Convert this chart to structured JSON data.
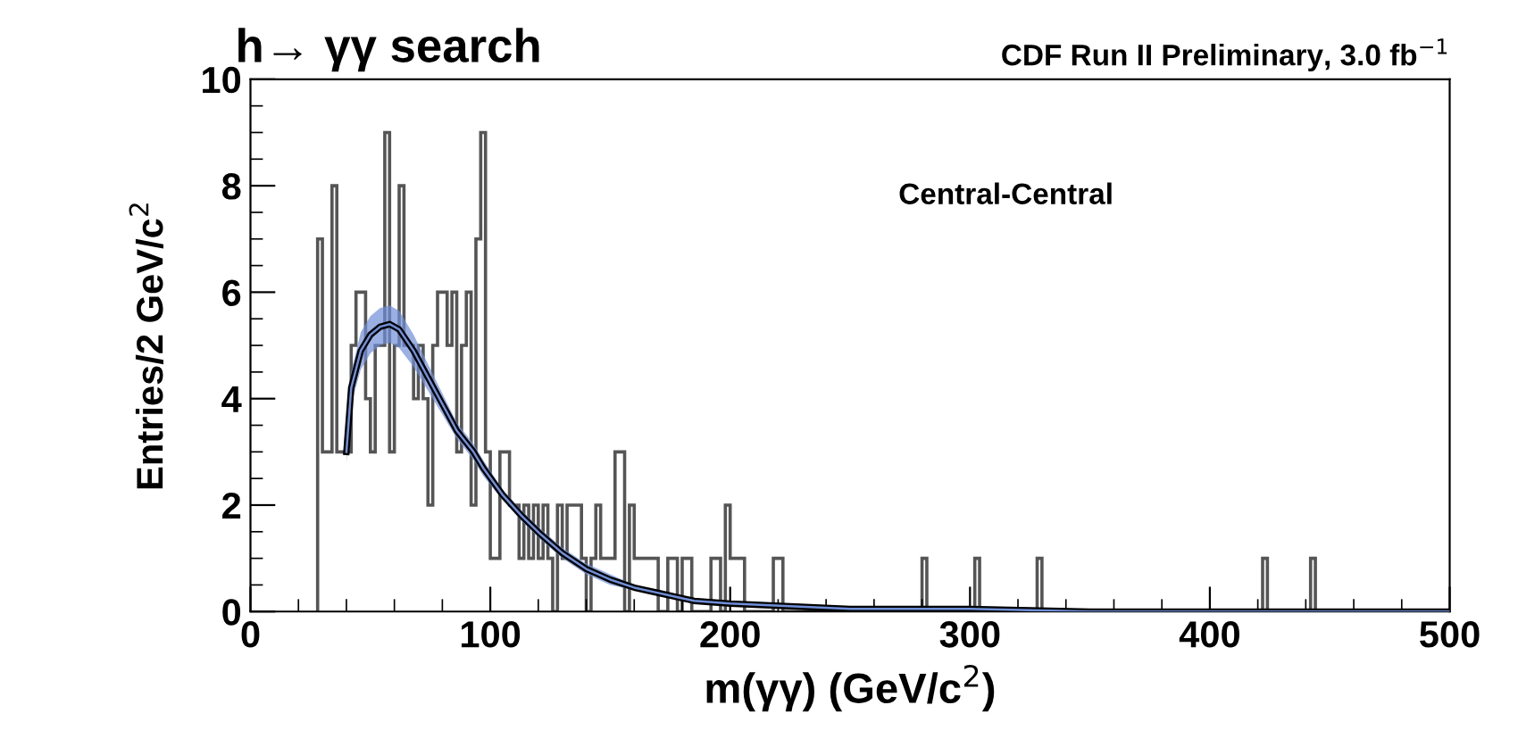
{
  "chart_data": {
    "type": "histogram",
    "title": "h→ γγ search",
    "xlabel": "m(γγ) (GeV/c$^{2}$)",
    "ylabel": "Entries/2 GeV/c$^{2}$",
    "annotations": [
      "CDF Run II Preliminary, 3.0 fb$^{−1}$",
      "Central-Central"
    ],
    "bins": [
      28,
      30,
      32,
      34,
      36,
      38,
      40,
      42,
      44,
      46,
      48,
      50,
      52,
      54,
      56,
      58,
      60,
      62,
      64,
      66,
      68,
      70,
      72,
      74,
      76,
      78,
      80,
      82,
      84,
      86,
      88,
      90,
      92,
      94,
      96,
      98,
      100,
      102,
      104,
      106,
      108,
      110,
      112,
      114,
      116,
      118,
      120,
      122,
      124,
      126,
      128,
      130,
      132,
      134,
      136,
      138,
      140,
      142,
      144,
      146,
      148,
      150,
      152,
      154,
      156,
      158,
      160,
      162,
      164,
      166,
      168,
      170,
      172,
      174,
      176,
      178,
      180,
      182,
      184,
      186,
      188,
      190,
      192,
      194,
      196,
      198,
      200,
      202,
      204,
      206,
      218,
      220,
      222,
      280,
      282,
      302,
      304,
      328,
      330,
      422,
      424,
      442,
      444
    ],
    "values": [
      7,
      3,
      3,
      8,
      3,
      3,
      3,
      5,
      6,
      6,
      4,
      3,
      5,
      5,
      9,
      3,
      5,
      8,
      5,
      5,
      4,
      5,
      4,
      2,
      5,
      6,
      6,
      5,
      6,
      3,
      5,
      6,
      2,
      7,
      9,
      3,
      1,
      1,
      3,
      3,
      2,
      2,
      1,
      2,
      1,
      2,
      1,
      2,
      1,
      0,
      2,
      1,
      2,
      2,
      2,
      1,
      0,
      1,
      2,
      1,
      1,
      1,
      3,
      3,
      0,
      2,
      1,
      1,
      1,
      1,
      1,
      0,
      0,
      1,
      1,
      0,
      1,
      1,
      0,
      0,
      0,
      0,
      1,
      1,
      0,
      2,
      1,
      1,
      1,
      0,
      1,
      1,
      0,
      1,
      0,
      1,
      0,
      1,
      0,
      1,
      0,
      1
    ],
    "color": "#555555",
    "series": [
      {
        "type": "line",
        "color": "#000000",
        "x": [
          40,
          42,
          46,
          50,
          54,
          58,
          62,
          68,
          74,
          80,
          86,
          93,
          97,
          105,
          113,
          121,
          130,
          140,
          150,
          160,
          170,
          185,
          200,
          225,
          250,
          300,
          350,
          400,
          450,
          500
        ],
        "values": [
          3.0,
          4.2,
          4.9,
          5.2,
          5.35,
          5.4,
          5.3,
          4.9,
          4.4,
          3.9,
          3.4,
          3.0,
          2.7,
          2.2,
          1.8,
          1.45,
          1.1,
          0.8,
          0.6,
          0.45,
          0.35,
          0.2,
          0.15,
          0.1,
          0.05,
          0.05,
          0,
          0,
          0,
          0
        ]
      },
      {
        "type": "line",
        "color": "#6f8fd8",
        "x": [
          40,
          42,
          46,
          50,
          54,
          58,
          62,
          68,
          74,
          80,
          86,
          93,
          97,
          105,
          113,
          121,
          130,
          140,
          150,
          160,
          170,
          185,
          200,
          225,
          250,
          300,
          350,
          400,
          450,
          500
        ],
        "values": [
          3.0,
          4.2,
          4.9,
          5.2,
          5.35,
          5.4,
          5.3,
          4.9,
          4.4,
          3.9,
          3.4,
          3.0,
          2.7,
          2.2,
          1.8,
          1.45,
          1.1,
          0.8,
          0.6,
          0.45,
          0.35,
          0.2,
          0.15,
          0.1,
          0.05,
          0.05,
          0,
          0,
          0,
          0
        ],
        "lower": [
          2.8,
          3.9,
          4.55,
          4.85,
          5.0,
          5.05,
          4.95,
          4.6,
          4.15,
          3.7,
          3.25,
          2.85,
          2.55,
          2.1,
          1.7,
          1.35,
          1.0,
          0.7,
          0.5,
          0.4,
          0.3,
          0.15,
          0.1,
          0.05,
          0,
          0,
          0,
          0,
          0,
          0
        ],
        "upper": [
          3.2,
          4.5,
          5.25,
          5.55,
          5.7,
          5.75,
          5.65,
          5.2,
          4.65,
          4.1,
          3.55,
          3.15,
          2.85,
          2.3,
          1.9,
          1.55,
          1.2,
          0.9,
          0.7,
          0.5,
          0.4,
          0.25,
          0.2,
          0.15,
          0.1,
          0.1,
          0.05,
          0.05,
          0.05,
          0.05
        ]
      }
    ],
    "xlim": [
      0,
      500
    ],
    "xticks": [
      0,
      100,
      200,
      300,
      400,
      500
    ],
    "ylim": [
      0,
      10
    ],
    "yticks": [
      0,
      2,
      4,
      6,
      8,
      10
    ],
    "grid": false,
    "legend": false
  }
}
